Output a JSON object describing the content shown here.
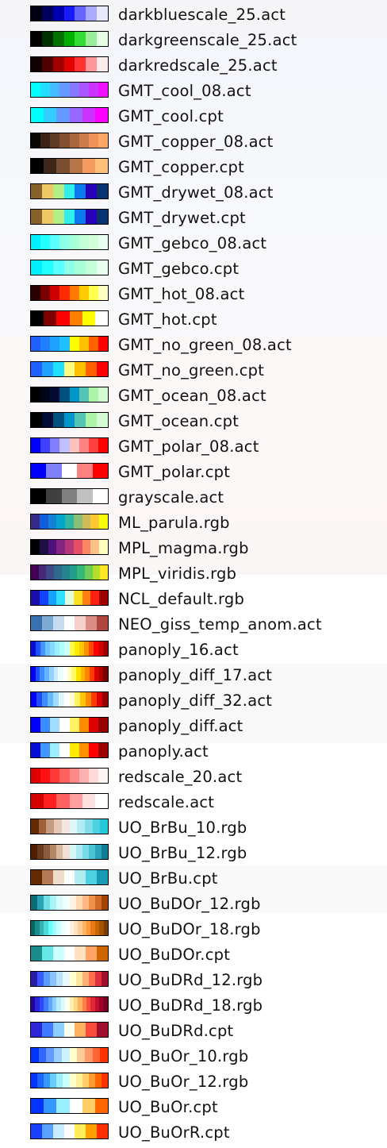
{
  "palette_menu": {
    "items": [
      {
        "label": "darkbluescale_25.act",
        "icon": "darkbluescale-swatch-icon",
        "colors": [
          "#000010",
          "#00005a",
          "#0000b0",
          "#1a1aff",
          "#6666ff",
          "#aaaaff",
          "#e8e8ff"
        ]
      },
      {
        "label": "darkgreenscale_25.act",
        "icon": "darkgreenscale-swatch-icon",
        "colors": [
          "#000000",
          "#003000",
          "#007000",
          "#00b000",
          "#33dd33",
          "#99ee99",
          "#e5ffe5"
        ]
      },
      {
        "label": "darkredscale_25.act",
        "icon": "darkredscale-swatch-icon",
        "colors": [
          "#100000",
          "#500000",
          "#a00000",
          "#e00000",
          "#ff3333",
          "#ff9999",
          "#ffeaea"
        ]
      },
      {
        "label": "GMT_cool_08.act",
        "icon": "gmt-cool-08-swatch-icon",
        "colors": [
          "#00ffff",
          "#22ddff",
          "#44bbff",
          "#6699ff",
          "#8877ff",
          "#aa55ff",
          "#cc33ff",
          "#ee11ff"
        ]
      },
      {
        "label": "GMT_cool.cpt",
        "icon": "gmt-cool-swatch-icon",
        "colors": [
          "#00ffff",
          "#33ccff",
          "#6699ff",
          "#9966ff",
          "#cc33ff",
          "#ff00ff"
        ]
      },
      {
        "label": "GMT_copper_08.act",
        "icon": "gmt-copper-08-swatch-icon",
        "colors": [
          "#0b0705",
          "#3a2416",
          "#5e3b24",
          "#824f30",
          "#a8663e",
          "#cc7c4c",
          "#ee925a",
          "#ffa866"
        ]
      },
      {
        "label": "GMT_copper.cpt",
        "icon": "gmt-copper-swatch-icon",
        "colors": [
          "#000000",
          "#3d2719",
          "#7a4e31",
          "#b8754a",
          "#f59c63",
          "#ffc07a"
        ]
      },
      {
        "label": "GMT_drywet_08.act",
        "icon": "gmt-drywet-08-swatch-icon",
        "colors": [
          "#86612a",
          "#eec764",
          "#b4ee87",
          "#32eeeb",
          "#0c78ee",
          "#2601b7",
          "#083371"
        ]
      },
      {
        "label": "GMT_drywet.cpt",
        "icon": "gmt-drywet-swatch-icon",
        "colors": [
          "#86612a",
          "#eec764",
          "#b4ee87",
          "#32eeeb",
          "#0c78ee",
          "#2601b7",
          "#083371"
        ]
      },
      {
        "label": "GMT_gebco_08.act",
        "icon": "gmt-gebco-08-swatch-icon",
        "colors": [
          "#00f0ff",
          "#23ffff",
          "#5affff",
          "#8cffe6",
          "#a5ffd7",
          "#c3ffd7",
          "#d2ffd7",
          "#e6fff0"
        ]
      },
      {
        "label": "GMT_gebco.cpt",
        "icon": "gmt-gebco-swatch-icon",
        "colors": [
          "#00f0ff",
          "#23ffff",
          "#5affff",
          "#8cffe6",
          "#a5ffd7",
          "#c3ffd7",
          "#e6fff0"
        ]
      },
      {
        "label": "GMT_hot_08.act",
        "icon": "gmt-hot-08-swatch-icon",
        "colors": [
          "#2a0000",
          "#7a0000",
          "#cc0000",
          "#ff2a00",
          "#ff7a00",
          "#ffcc00",
          "#ffff4d",
          "#ffffbf"
        ]
      },
      {
        "label": "GMT_hot.cpt",
        "icon": "gmt-hot-swatch-icon",
        "colors": [
          "#000000",
          "#800000",
          "#ff0000",
          "#ff8000",
          "#ffff00",
          "#ffffff"
        ]
      },
      {
        "label": "GMT_no_green_08.act",
        "icon": "gmt-no-green-08-swatch-icon",
        "colors": [
          "#2060ff",
          "#2080ff",
          "#20a0ff",
          "#20c0ff",
          "#ffff00",
          "#ffc000",
          "#ff6000",
          "#ff0000"
        ]
      },
      {
        "label": "GMT_no_green.cpt",
        "icon": "gmt-no-green-swatch-icon",
        "colors": [
          "#2060ff",
          "#20a0ff",
          "#20e0ff",
          "#ffff80",
          "#ffc000",
          "#ff6000",
          "#ff0000"
        ]
      },
      {
        "label": "GMT_ocean_08.act",
        "icon": "gmt-ocean-08-swatch-icon",
        "colors": [
          "#000000",
          "#000519",
          "#000a32",
          "#00507d",
          "#0096c8",
          "#56c5b8",
          "#acf5a8",
          "#d3fad3"
        ]
      },
      {
        "label": "GMT_ocean.cpt",
        "icon": "gmt-ocean-swatch-icon",
        "colors": [
          "#000000",
          "#000a32",
          "#00507d",
          "#0096c8",
          "#56c5b8",
          "#acf5a8",
          "#d3fad3"
        ]
      },
      {
        "label": "GMT_polar_08.act",
        "icon": "gmt-polar-08-swatch-icon",
        "colors": [
          "#0000ff",
          "#4040ff",
          "#8080ff",
          "#c0c0ff",
          "#ffc0c0",
          "#ff8080",
          "#ff4040",
          "#ff0000"
        ]
      },
      {
        "label": "GMT_polar.cpt",
        "icon": "gmt-polar-swatch-icon",
        "colors": [
          "#0000ff",
          "#8080ff",
          "#ffffff",
          "#ff8080",
          "#ff0000"
        ]
      },
      {
        "label": "grayscale.act",
        "icon": "grayscale-swatch-icon",
        "colors": [
          "#000000",
          "#404040",
          "#808080",
          "#c0c0c0",
          "#ffffff"
        ]
      },
      {
        "label": "ML_parula.rgb",
        "icon": "ml-parula-swatch-icon",
        "colors": [
          "#352a87",
          "#0f5cdd",
          "#1481d6",
          "#06a4ca",
          "#2eb7a4",
          "#87bf77",
          "#d1bb59",
          "#fec832",
          "#f9fb0e"
        ]
      },
      {
        "label": "MPL_magma.rgb",
        "icon": "mpl-magma-swatch-icon",
        "colors": [
          "#000004",
          "#1c1044",
          "#4f127b",
          "#812581",
          "#b5367a",
          "#e55064",
          "#fb8761",
          "#fec287",
          "#fcfdbf"
        ]
      },
      {
        "label": "MPL_viridis.rgb",
        "icon": "mpl-viridis-swatch-icon",
        "colors": [
          "#440154",
          "#482878",
          "#3e4989",
          "#31688e",
          "#26828e",
          "#1f9e89",
          "#35b779",
          "#6ece58",
          "#b5de2b",
          "#fde725"
        ]
      },
      {
        "label": "NCL_default.rgb",
        "icon": "ncl-default-swatch-icon",
        "colors": [
          "#1a0da8",
          "#1440ff",
          "#18a0ff",
          "#30e0ff",
          "#e0ffe0",
          "#ffe020",
          "#ff8010",
          "#ff2010",
          "#a00000"
        ]
      },
      {
        "label": "NEO_giss_temp_anom.act",
        "icon": "neo-giss-temp-anom-swatch-icon",
        "colors": [
          "#3a6fb0",
          "#80aad6",
          "#c6dcee",
          "#ffffff",
          "#f5cfc8",
          "#dc8c84",
          "#b0443f"
        ]
      },
      {
        "label": "panoply_16.act",
        "icon": "panoply-16-swatch-icon",
        "colors": [
          "#040ed8",
          "#2050ff",
          "#4196ff",
          "#6dc1ff",
          "#86d9ff",
          "#9ceeff",
          "#afffff",
          "#ceffff",
          "#fffe47",
          "#ffeb00",
          "#ffc400",
          "#ff9000",
          "#ff4800",
          "#ff0000",
          "#d50000",
          "#9e0000"
        ]
      },
      {
        "label": "panoply_diff_17.act",
        "icon": "panoply-diff-17-swatch-icon",
        "colors": [
          "#0000ff",
          "#1e50ff",
          "#3c8cff",
          "#64b4ff",
          "#96d2ff",
          "#c8ebff",
          "#e6ffff",
          "#ffffff",
          "#ffffc8",
          "#fffa64",
          "#ffe100",
          "#ffb400",
          "#ff8200",
          "#ff3c00",
          "#dc0000",
          "#aa0000",
          "#780000"
        ]
      },
      {
        "label": "panoply_diff_32.act",
        "icon": "panoply-diff-32-swatch-icon",
        "colors": [
          "#0000ff",
          "#1e4bff",
          "#3c8cff",
          "#64b9ff",
          "#a0dcff",
          "#dcf5ff",
          "#ffffff",
          "#fffad2",
          "#fff064",
          "#ffc800",
          "#ff8c00",
          "#ff3c00",
          "#dc0000",
          "#960000"
        ]
      },
      {
        "label": "panoply_diff.act",
        "icon": "panoply-diff-swatch-icon",
        "colors": [
          "#0000ff",
          "#3c8cff",
          "#a0dcff",
          "#ffffff",
          "#fff064",
          "#ff8c00",
          "#dc0000",
          "#960000"
        ]
      },
      {
        "label": "panoply.act",
        "icon": "panoply-swatch-icon",
        "colors": [
          "#040ed8",
          "#4196ff",
          "#9ceeff",
          "#ffffff",
          "#ffeb00",
          "#ff9000",
          "#ff0000",
          "#9e0000"
        ]
      },
      {
        "label": "redscale_20.act",
        "icon": "redscale-20-swatch-icon",
        "colors": [
          "#e00000",
          "#ff1010",
          "#ff3838",
          "#ff6060",
          "#ff8888",
          "#ffb0b0",
          "#ffd8d8",
          "#fff4f4"
        ]
      },
      {
        "label": "redscale.act",
        "icon": "redscale-swatch-icon",
        "colors": [
          "#d40000",
          "#ff2020",
          "#ff6060",
          "#ffa0a0",
          "#ffe0e0",
          "#ffffff"
        ]
      },
      {
        "label": "UO_BrBu_10.rgb",
        "icon": "uo-brbu-10-swatch-icon",
        "colors": [
          "#662a00",
          "#9e6139",
          "#c79b7f",
          "#e3c8b6",
          "#f2e6de",
          "#e0f7fa",
          "#b2ebf2",
          "#80deea",
          "#4dd0e1",
          "#26c6da"
        ]
      },
      {
        "label": "UO_BrBu_12.rgb",
        "icon": "uo-brbu-12-swatch-icon",
        "colors": [
          "#4d1f00",
          "#6b3a1a",
          "#8c5a3d",
          "#b38766",
          "#d9b8a0",
          "#f2dfd3",
          "#d6f5f7",
          "#a8eaef",
          "#78dbe5",
          "#48c4d3",
          "#2aa3b8",
          "#0f7c95"
        ]
      },
      {
        "label": "UO_BrBu.cpt",
        "icon": "uo-brbu-swatch-icon",
        "colors": [
          "#662a00",
          "#b37a55",
          "#f0dccc",
          "#ffffff",
          "#b2ebf2",
          "#4dd0e1",
          "#1a9bb5"
        ]
      },
      {
        "label": "UO_BuDOr_12.rgb",
        "icon": "uo-budor-12-swatch-icon",
        "colors": [
          "#0f6a78",
          "#29a3b3",
          "#70e0e8",
          "#a8f5f8",
          "#d6fcfc",
          "#f0ffff",
          "#fff2e0",
          "#ffd9b3",
          "#ffb880",
          "#f0904d",
          "#d06a26",
          "#a04400"
        ]
      },
      {
        "label": "UO_BuDOr_18.rgb",
        "icon": "uo-budor-18-swatch-icon",
        "colors": [
          "#006666",
          "#1a8c8c",
          "#33b3b3",
          "#4dd9d9",
          "#66ffff",
          "#99ffff",
          "#ccffff",
          "#e6ffff",
          "#ffffff",
          "#fff0e0",
          "#ffe0c0",
          "#ffcc99",
          "#ffb366",
          "#ff9933",
          "#e67a1a",
          "#cc6600",
          "#a35200",
          "#7a3d00"
        ]
      },
      {
        "label": "UO_BuDOr.cpt",
        "icon": "uo-budor-swatch-icon",
        "colors": [
          "#1a8c8c",
          "#66e6e6",
          "#ccffff",
          "#ffffff",
          "#ffe0c0",
          "#ffa366",
          "#cc6600"
        ]
      },
      {
        "label": "UO_BuDRd_12.rgb",
        "icon": "uo-budrd-12-swatch-icon",
        "colors": [
          "#2a1ca8",
          "#3a5cff",
          "#5c9cff",
          "#8cc4ff",
          "#bce2ff",
          "#e6f7ff",
          "#ffffd0",
          "#ffe4a0",
          "#ffb070",
          "#ff7050",
          "#e03040",
          "#a0102c"
        ]
      },
      {
        "label": "UO_BuDRd_18.rgb",
        "icon": "uo-budrd-18-swatch-icon",
        "colors": [
          "#24009e",
          "#2b24d8",
          "#294aff",
          "#3f7aff",
          "#5ea8ff",
          "#8ccfff",
          "#b8ecff",
          "#dcfaff",
          "#fffff0",
          "#fff0b0",
          "#ffd880",
          "#ffb060",
          "#ff8048",
          "#f84c3c",
          "#e02838",
          "#c01030",
          "#9c0028",
          "#780020"
        ]
      },
      {
        "label": "UO_BuDRd.cpt",
        "icon": "uo-budrd-swatch-icon",
        "colors": [
          "#2b24d8",
          "#3f7aff",
          "#8ccfff",
          "#fffff0",
          "#ffb060",
          "#f84c3c",
          "#a0102c"
        ]
      },
      {
        "label": "UO_BuOr_10.rgb",
        "icon": "uo-buor-10-swatch-icon",
        "colors": [
          "#0033ff",
          "#3366ff",
          "#6699ff",
          "#99ccff",
          "#ccf2ff",
          "#ffffcc",
          "#ffcc99",
          "#ff9966",
          "#ff6633",
          "#ff3300"
        ]
      },
      {
        "label": "UO_BuOr_12.rgb",
        "icon": "uo-buor-12-swatch-icon",
        "colors": [
          "#0033ff",
          "#1a66ff",
          "#3399ff",
          "#66ccff",
          "#99eeff",
          "#ccffff",
          "#ffffcc",
          "#ffee99",
          "#ffcc66",
          "#ff9933",
          "#ff6600",
          "#ff3300"
        ]
      },
      {
        "label": "UO_BuOr.cpt",
        "icon": "uo-buor-swatch-icon",
        "colors": [
          "#0033ff",
          "#3399ff",
          "#99eeff",
          "#ffffff",
          "#ffcc66",
          "#ff6600"
        ]
      },
      {
        "label": "UO_BuOrR.cpt",
        "icon": "uo-buorr-swatch-icon",
        "colors": [
          "#1a40ff",
          "#5aa0ff",
          "#c8ecff",
          "#ffffff",
          "#ffee55",
          "#ffa000",
          "#ff3000"
        ]
      }
    ]
  }
}
